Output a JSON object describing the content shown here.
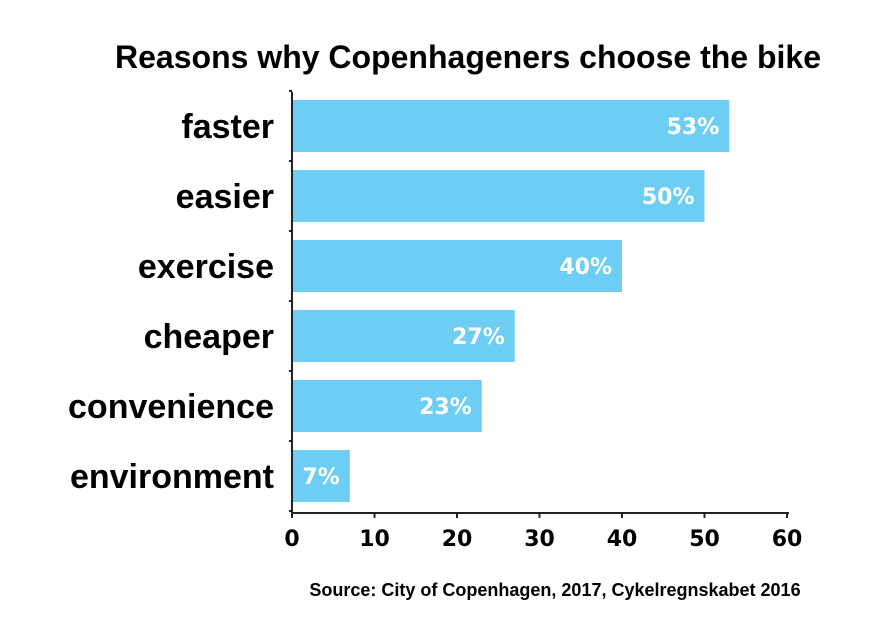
{
  "chart_data": {
    "type": "bar",
    "orientation": "horizontal",
    "title": "Reasons why Copenhageners choose the bike",
    "categories": [
      "faster",
      "easier",
      "exercise",
      "cheaper",
      "convenience",
      "environment"
    ],
    "values": [
      53,
      50,
      40,
      27,
      23,
      7
    ],
    "data_labels": [
      "53%",
      "50%",
      "40%",
      "27%",
      "23%",
      "7%"
    ],
    "x_ticks": [
      "0",
      "10",
      "20",
      "30",
      "40",
      "50",
      "60"
    ],
    "xlim": [
      0,
      60
    ],
    "xlabel": "",
    "ylabel": "",
    "grid": false,
    "bar_color": "#6dcdf3",
    "source": "Source: City of Copenhagen, 2017, Cykelregnskabet 2016"
  }
}
